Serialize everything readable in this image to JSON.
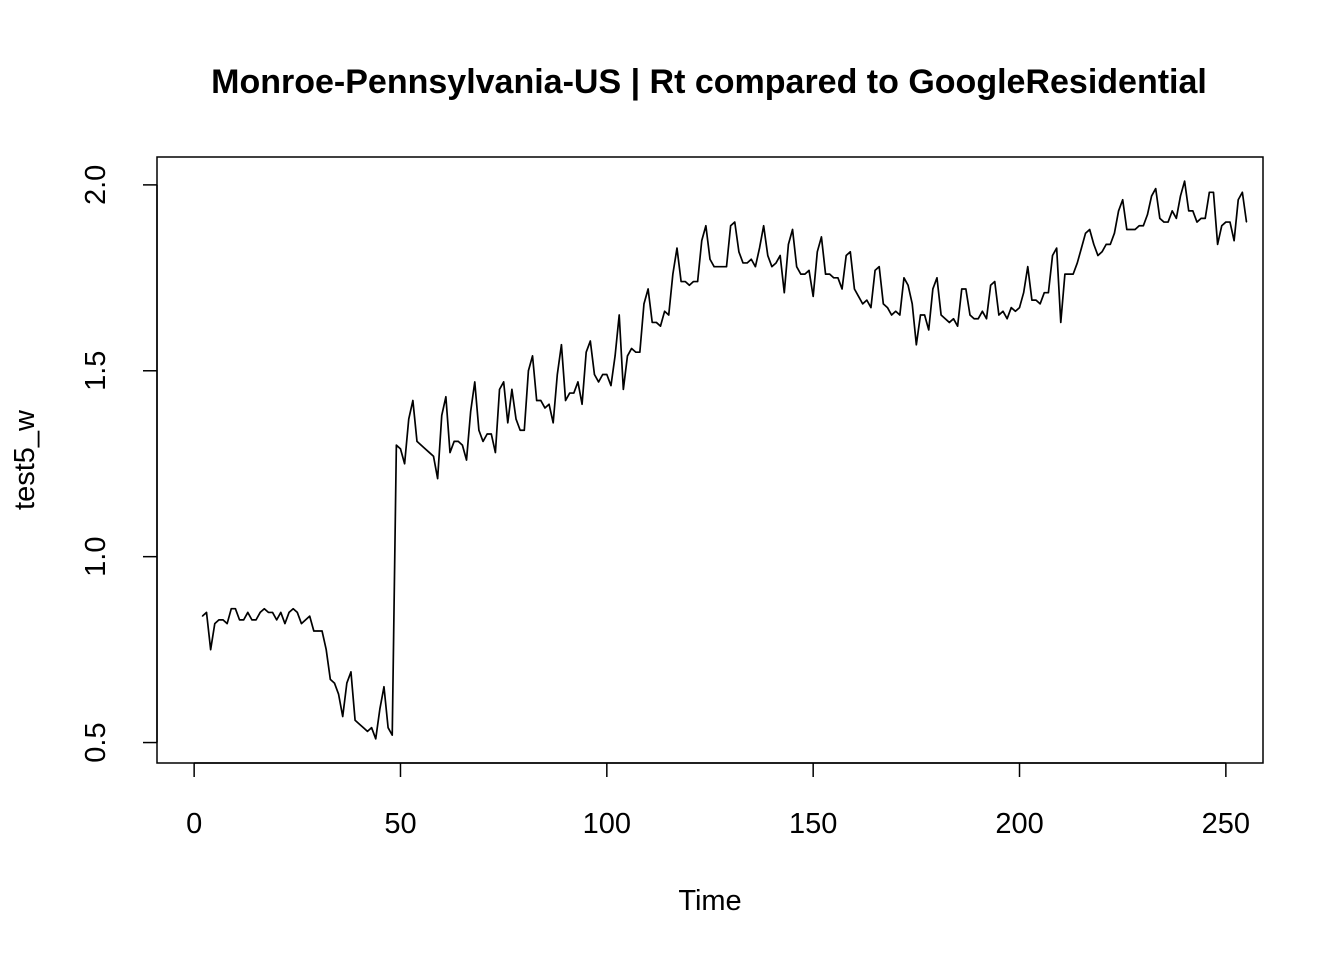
{
  "chart_data": {
    "type": "line",
    "title": "Monroe-Pennsylvania-US | Rt compared to GoogleResidential",
    "xlabel": "Time",
    "ylabel": "test5_w",
    "xlim": [
      -9,
      259
    ],
    "ylim": [
      0.445,
      2.075
    ],
    "x_ticks": [
      0,
      50,
      100,
      150,
      200,
      250
    ],
    "y_ticks": [
      0.5,
      1.0,
      1.5,
      2.0
    ],
    "x_tick_labels": [
      "0",
      "50",
      "100",
      "150",
      "200",
      "250"
    ],
    "y_tick_labels": [
      "0.5",
      "1.0",
      "1.5",
      "2.0"
    ],
    "grid": false,
    "line_color": "#000000",
    "series": [
      {
        "x_start": 2,
        "values": [
          0.84,
          0.85,
          0.75,
          0.82,
          0.83,
          0.83,
          0.82,
          0.86,
          0.86,
          0.83,
          0.83,
          0.85,
          0.83,
          0.83,
          0.85,
          0.86,
          0.85,
          0.85,
          0.83,
          0.85,
          0.82,
          0.85,
          0.86,
          0.85,
          0.82,
          0.83,
          0.84,
          0.8,
          0.8,
          0.8,
          0.75,
          0.67,
          0.66,
          0.63,
          0.57,
          0.66,
          0.69,
          0.56,
          0.55,
          0.54,
          0.53,
          0.54,
          0.51,
          0.59,
          0.65,
          0.54,
          0.52,
          1.3,
          1.29,
          1.25,
          1.37,
          1.42,
          1.31,
          1.3,
          1.29,
          1.28,
          1.27,
          1.21,
          1.38,
          1.43,
          1.28,
          1.31,
          1.31,
          1.3,
          1.26,
          1.39,
          1.47,
          1.34,
          1.31,
          1.33,
          1.33,
          1.28,
          1.45,
          1.47,
          1.36,
          1.45,
          1.37,
          1.34,
          1.34,
          1.5,
          1.54,
          1.42,
          1.42,
          1.4,
          1.41,
          1.36,
          1.49,
          1.57,
          1.42,
          1.44,
          1.44,
          1.47,
          1.41,
          1.55,
          1.58,
          1.49,
          1.47,
          1.49,
          1.49,
          1.46,
          1.54,
          1.65,
          1.45,
          1.54,
          1.56,
          1.55,
          1.55,
          1.68,
          1.72,
          1.63,
          1.63,
          1.62,
          1.66,
          1.65,
          1.76,
          1.83,
          1.74,
          1.74,
          1.73,
          1.74,
          1.74,
          1.85,
          1.89,
          1.8,
          1.78,
          1.78,
          1.78,
          1.78,
          1.89,
          1.9,
          1.82,
          1.79,
          1.79,
          1.8,
          1.78,
          1.83,
          1.89,
          1.81,
          1.78,
          1.79,
          1.81,
          1.71,
          1.84,
          1.88,
          1.78,
          1.76,
          1.76,
          1.77,
          1.7,
          1.82,
          1.86,
          1.76,
          1.76,
          1.75,
          1.75,
          1.72,
          1.81,
          1.82,
          1.72,
          1.7,
          1.68,
          1.69,
          1.67,
          1.77,
          1.78,
          1.68,
          1.67,
          1.65,
          1.66,
          1.65,
          1.75,
          1.73,
          1.68,
          1.57,
          1.65,
          1.65,
          1.61,
          1.72,
          1.75,
          1.65,
          1.64,
          1.63,
          1.64,
          1.62,
          1.72,
          1.72,
          1.65,
          1.64,
          1.64,
          1.66,
          1.64,
          1.73,
          1.74,
          1.65,
          1.66,
          1.64,
          1.67,
          1.66,
          1.67,
          1.71,
          1.78,
          1.69,
          1.69,
          1.68,
          1.71,
          1.71,
          1.81,
          1.83,
          1.63,
          1.76,
          1.76,
          1.76,
          1.79,
          1.83,
          1.87,
          1.88,
          1.84,
          1.81,
          1.82,
          1.84,
          1.84,
          1.87,
          1.93,
          1.96,
          1.88,
          1.88,
          1.88,
          1.89,
          1.89,
          1.92,
          1.97,
          1.99,
          1.91,
          1.9,
          1.9,
          1.93,
          1.91,
          1.97,
          2.01,
          1.93,
          1.93,
          1.9,
          1.91,
          1.91,
          1.98,
          1.98,
          1.84,
          1.89,
          1.9,
          1.9,
          1.85,
          1.96,
          1.98,
          1.9
        ]
      }
    ]
  }
}
